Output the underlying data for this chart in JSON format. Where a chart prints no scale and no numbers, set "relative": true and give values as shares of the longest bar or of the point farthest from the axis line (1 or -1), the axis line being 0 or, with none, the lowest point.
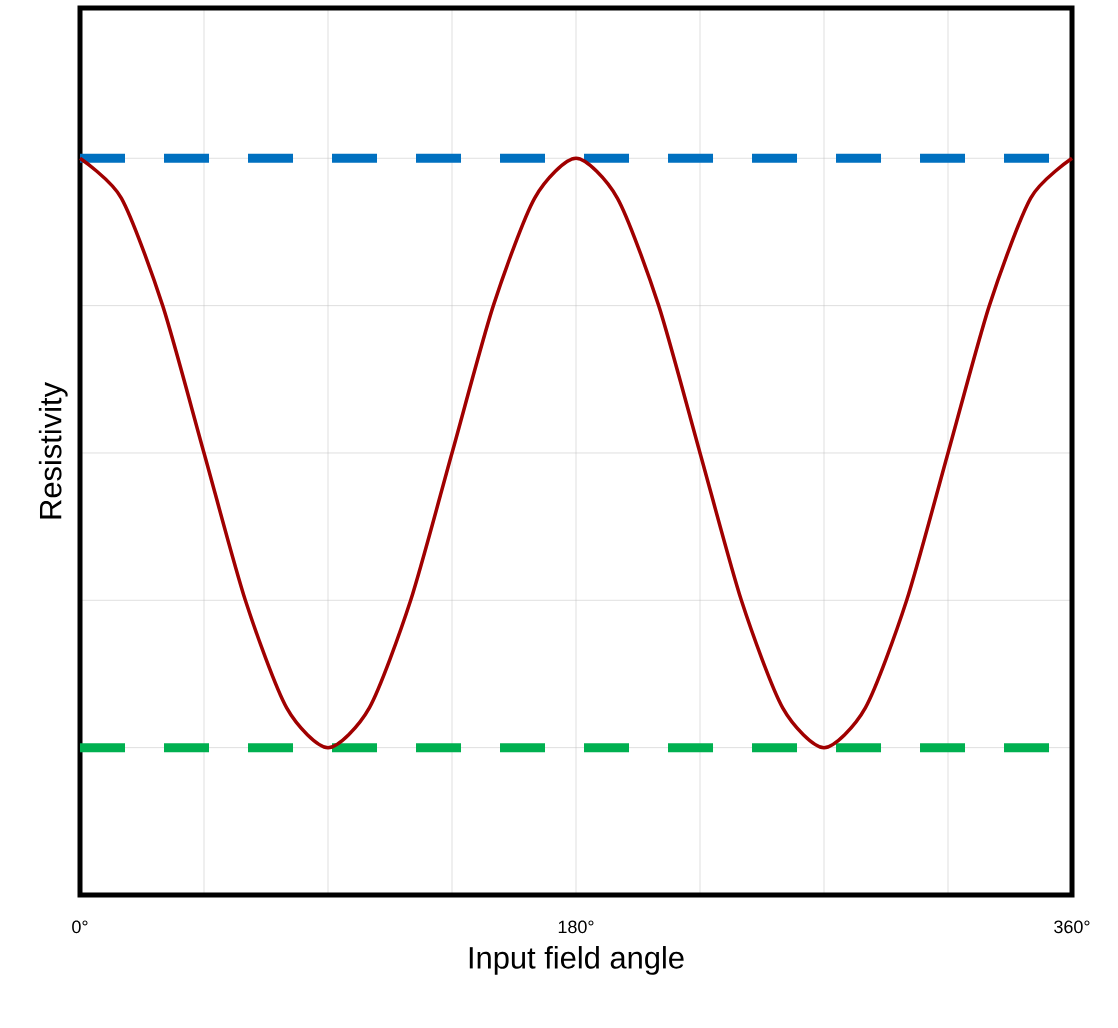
{
  "chart_data": {
    "type": "line",
    "relative": true,
    "xlabel": "Input field angle",
    "ylabel": "Resistivity",
    "x": [
      0,
      15,
      30,
      45,
      60,
      75,
      90,
      105,
      120,
      135,
      150,
      165,
      180,
      195,
      210,
      225,
      240,
      255,
      270,
      285,
      300,
      315,
      330,
      345,
      360
    ],
    "series": [
      {
        "color": "#a00000",
        "values": [
          1,
          0.946,
          0.8,
          0.6,
          0.4,
          0.254,
          0.2,
          0.254,
          0.4,
          0.6,
          0.8,
          0.946,
          1,
          0.946,
          0.8,
          0.6,
          0.4,
          0.254,
          0.2,
          0.254,
          0.4,
          0.6,
          0.8,
          0.946,
          1
        ]
      }
    ],
    "xlim": [
      0,
      360
    ],
    "xticks": [
      {
        "value": 0,
        "label": "0°"
      },
      {
        "value": 45,
        "label": null
      },
      {
        "value": 90,
        "label": null
      },
      {
        "value": 135,
        "label": null
      },
      {
        "value": 180,
        "label": "180°"
      },
      {
        "value": 225,
        "label": null
      },
      {
        "value": 270,
        "label": null
      },
      {
        "value": 315,
        "label": null
      },
      {
        "value": 360,
        "label": "360°"
      }
    ],
    "ref_lines": [
      {
        "axis": "y",
        "value": 1,
        "color": "#0070c0",
        "line_style": "dashed"
      },
      {
        "axis": "y",
        "value": 0.2,
        "color": "#00b050",
        "line_style": "dashed"
      }
    ],
    "grid": true,
    "line_style": "solid",
    "marker": "none"
  }
}
